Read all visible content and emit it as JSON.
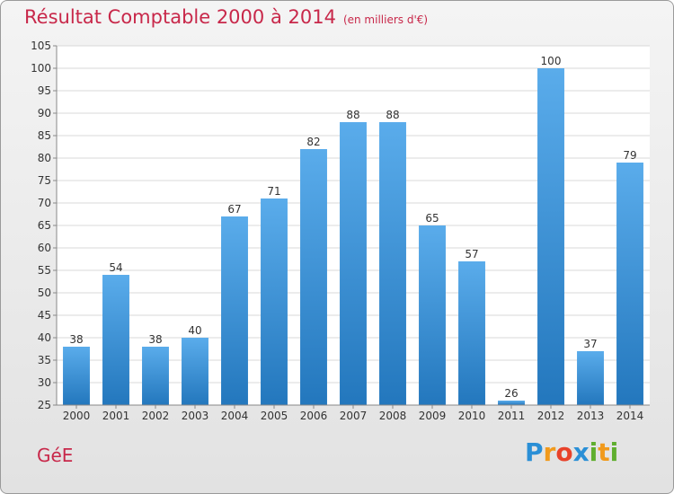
{
  "header": {
    "title": "Résultat Comptable 2000 à 2014",
    "subtitle": "(en milliers d'€)"
  },
  "footer": {
    "commune": "GéE",
    "logo_letters": [
      "P",
      "r",
      "o",
      "x",
      "i",
      "t",
      "i"
    ],
    "logo_colors": [
      "#2a8fd6",
      "#f19a1c",
      "#e8422a",
      "#2a8fd6",
      "#5fae2e",
      "#f19a1c",
      "#5fae2e"
    ]
  },
  "chart_data": {
    "type": "bar",
    "title": "Résultat Comptable 2000 à 2014",
    "subtitle": "(en milliers d'€)",
    "xlabel": "",
    "ylabel": "",
    "categories": [
      "2000",
      "2001",
      "2002",
      "2003",
      "2004",
      "2005",
      "2006",
      "2007",
      "2008",
      "2009",
      "2010",
      "2011",
      "2012",
      "2013",
      "2014"
    ],
    "values": [
      38,
      54,
      38,
      40,
      67,
      71,
      82,
      88,
      88,
      65,
      57,
      26,
      100,
      37,
      79
    ],
    "ylim": [
      25,
      105
    ],
    "yticks": [
      25,
      30,
      35,
      40,
      45,
      50,
      55,
      60,
      65,
      70,
      75,
      80,
      85,
      90,
      95,
      100,
      105
    ],
    "grid": true,
    "bar_color": "#3d94d8"
  }
}
